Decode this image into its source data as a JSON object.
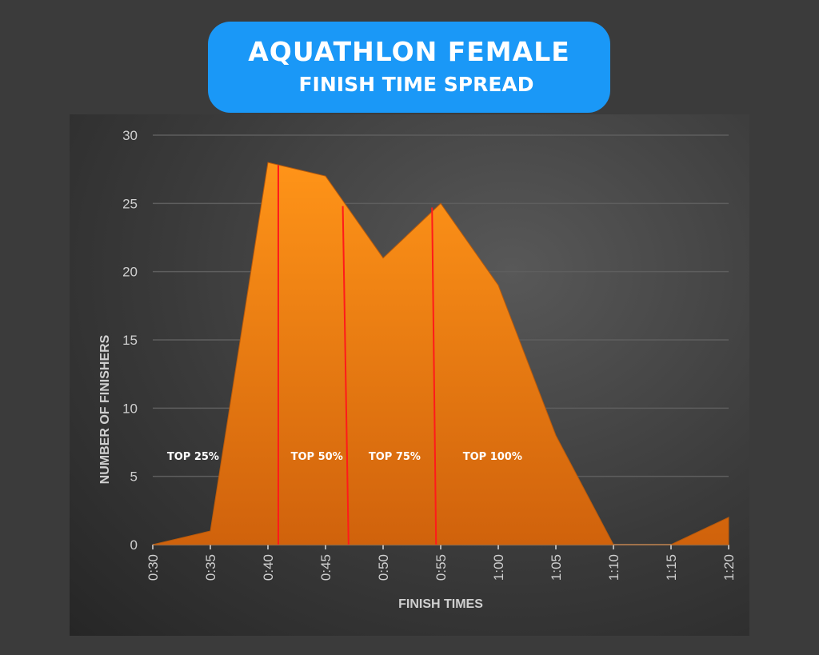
{
  "title": {
    "line1": "AQUATHLON FEMALE",
    "line2": "FINISH TIME SPREAD"
  },
  "colors": {
    "title_bg": "#1a98f7",
    "area_top": "#ff9418",
    "area_bottom": "#d0620c",
    "marker": "#ff1a1a"
  },
  "chart_data": {
    "type": "area",
    "title": "AQUATHLON FEMALE FINISH TIME SPREAD",
    "xlabel": "FINISH TIMES",
    "ylabel": "NUMBER OF FINISHERS",
    "categories": [
      "0:30",
      "0:35",
      "0:40",
      "0:45",
      "0:50",
      "0:55",
      "1:00",
      "1:05",
      "1:10",
      "1:15",
      "1:20"
    ],
    "values": [
      0,
      1,
      28,
      27,
      21,
      25,
      19,
      8,
      0,
      0,
      2
    ],
    "ylim": [
      0,
      30
    ],
    "yticks": [
      0,
      5,
      10,
      15,
      20,
      25,
      30
    ],
    "grid": true,
    "annotations": [
      {
        "label": "TOP 25%",
        "x": 0.7,
        "y": 6.5
      },
      {
        "label": "TOP 50%",
        "x": 2.85,
        "y": 6.5
      },
      {
        "label": "TOP 75%",
        "x": 4.2,
        "y": 6.5
      },
      {
        "label": "TOP 100%",
        "x": 5.9,
        "y": 6.5
      }
    ],
    "markers": [
      {
        "x_top": 2.18,
        "x_bottom": 2.18,
        "y_top": 27.8
      },
      {
        "x_top": 3.3,
        "x_bottom": 3.4,
        "y_top": 24.8
      },
      {
        "x_top": 4.85,
        "x_bottom": 4.92,
        "y_top": 24.7
      }
    ]
  }
}
